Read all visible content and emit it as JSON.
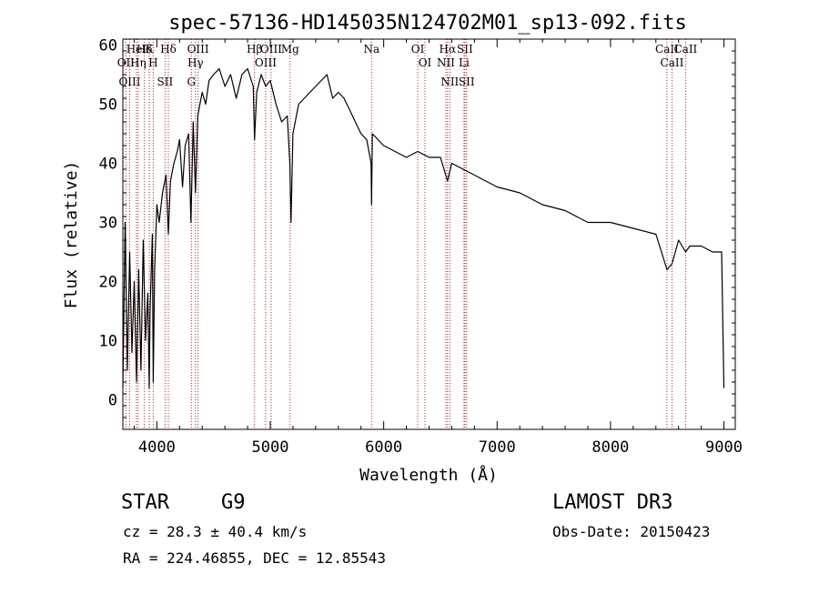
{
  "chart_data": {
    "type": "line",
    "title": "spec-57136-HD145035N124702M01_sp13-092.fits",
    "xlabel": "Wavelength (Å)",
    "ylabel": "Flux (relative)",
    "xlim": [
      3700,
      9100
    ],
    "ylim": [
      -5,
      61
    ],
    "xticks": [
      4000,
      5000,
      6000,
      7000,
      8000,
      9000
    ],
    "yticks": [
      0,
      10,
      20,
      30,
      40,
      50,
      60
    ],
    "series": [
      {
        "name": "spectrum",
        "x": [
          3700,
          3720,
          3740,
          3760,
          3780,
          3800,
          3820,
          3840,
          3860,
          3880,
          3900,
          3920,
          3933,
          3940,
          3960,
          3968,
          3980,
          4000,
          4020,
          4050,
          4080,
          4101,
          4120,
          4150,
          4180,
          4200,
          4226,
          4250,
          4280,
          4300,
          4320,
          4340,
          4360,
          4380,
          4400,
          4430,
          4460,
          4500,
          4550,
          4600,
          4650,
          4700,
          4750,
          4800,
          4850,
          4861,
          4880,
          4920,
          4960,
          5000,
          5050,
          5100,
          5150,
          5172,
          5183,
          5200,
          5250,
          5300,
          5350,
          5400,
          5450,
          5500,
          5550,
          5600,
          5650,
          5700,
          5750,
          5800,
          5850,
          5889,
          5893,
          5900,
          5950,
          6000,
          6100,
          6200,
          6300,
          6400,
          6500,
          6563,
          6600,
          6700,
          6800,
          6900,
          7000,
          7200,
          7400,
          7600,
          7800,
          8000,
          8200,
          8400,
          8498,
          8542,
          8600,
          8662,
          8700,
          8800,
          8900,
          8980,
          9000
        ],
        "y": [
          2,
          30,
          5,
          25,
          8,
          20,
          3,
          22,
          5,
          27,
          10,
          18,
          2,
          15,
          28,
          3,
          22,
          33,
          30,
          35,
          38,
          28,
          37,
          40,
          42,
          44,
          36,
          43,
          45,
          30,
          47,
          35,
          48,
          50,
          52,
          50,
          54,
          55,
          56,
          53,
          55,
          51,
          55,
          56,
          53,
          44,
          52,
          55,
          53,
          54,
          50,
          47,
          48,
          40,
          30,
          45,
          50,
          51,
          52,
          53,
          54,
          55,
          51,
          52,
          51,
          49,
          47,
          45,
          44,
          40,
          33,
          45,
          44,
          43,
          42,
          41,
          42,
          41,
          41,
          37,
          40,
          39,
          38,
          37,
          36,
          35,
          33,
          32,
          30,
          30,
          29,
          28,
          22,
          23,
          27,
          25,
          26,
          26,
          25,
          25,
          2
        ]
      }
    ],
    "line_markers": [
      {
        "label": "Hδ",
        "wavelength": 3889
      },
      {
        "label": "OII",
        "wavelength": 3727
      },
      {
        "label": "OIII",
        "wavelength": 3760
      },
      {
        "label": "HeI",
        "wavelength": 3820
      },
      {
        "label": "Hη",
        "wavelength": 3835
      },
      {
        "label": "K",
        "wavelength": 3933
      },
      {
        "label": "H",
        "wavelength": 3968
      },
      {
        "label": "Hδ",
        "wavelength": 4101
      },
      {
        "label": "SII",
        "wavelength": 4072
      },
      {
        "label": "OIII",
        "wavelength": 4363
      },
      {
        "label": "Hγ",
        "wavelength": 4340
      },
      {
        "label": "G",
        "wavelength": 4304
      },
      {
        "label": "Hβ",
        "wavelength": 4861
      },
      {
        "label": "OIII",
        "wavelength": 4959
      },
      {
        "label": "OIII",
        "wavelength": 5007
      },
      {
        "label": "Mg",
        "wavelength": 5175
      },
      {
        "label": "Na",
        "wavelength": 5893
      },
      {
        "label": "OI",
        "wavelength": 6300
      },
      {
        "label": "OI",
        "wavelength": 6364
      },
      {
        "label": "Hα",
        "wavelength": 6563
      },
      {
        "label": "NII",
        "wavelength": 6548
      },
      {
        "label": "NII",
        "wavelength": 6583
      },
      {
        "label": "SII",
        "wavelength": 6716
      },
      {
        "label": "Li",
        "wavelength": 6708
      },
      {
        "label": "SII",
        "wavelength": 6731
      },
      {
        "label": "CaII",
        "wavelength": 8498
      },
      {
        "label": "CaII",
        "wavelength": 8542
      },
      {
        "label": "CaII",
        "wavelength": 8662
      }
    ]
  },
  "footer": {
    "object_class": "STAR",
    "subclass": "G9",
    "survey": "LAMOST DR3",
    "cz": "cz = 28.3 ± 40.4 km/s",
    "obs_date": "Obs-Date: 20150423",
    "coords": "RA = 224.46855, DEC =  12.85543"
  },
  "colors": {
    "spectrum": "#000000",
    "marker": "#b22222",
    "axis": "#000000"
  }
}
